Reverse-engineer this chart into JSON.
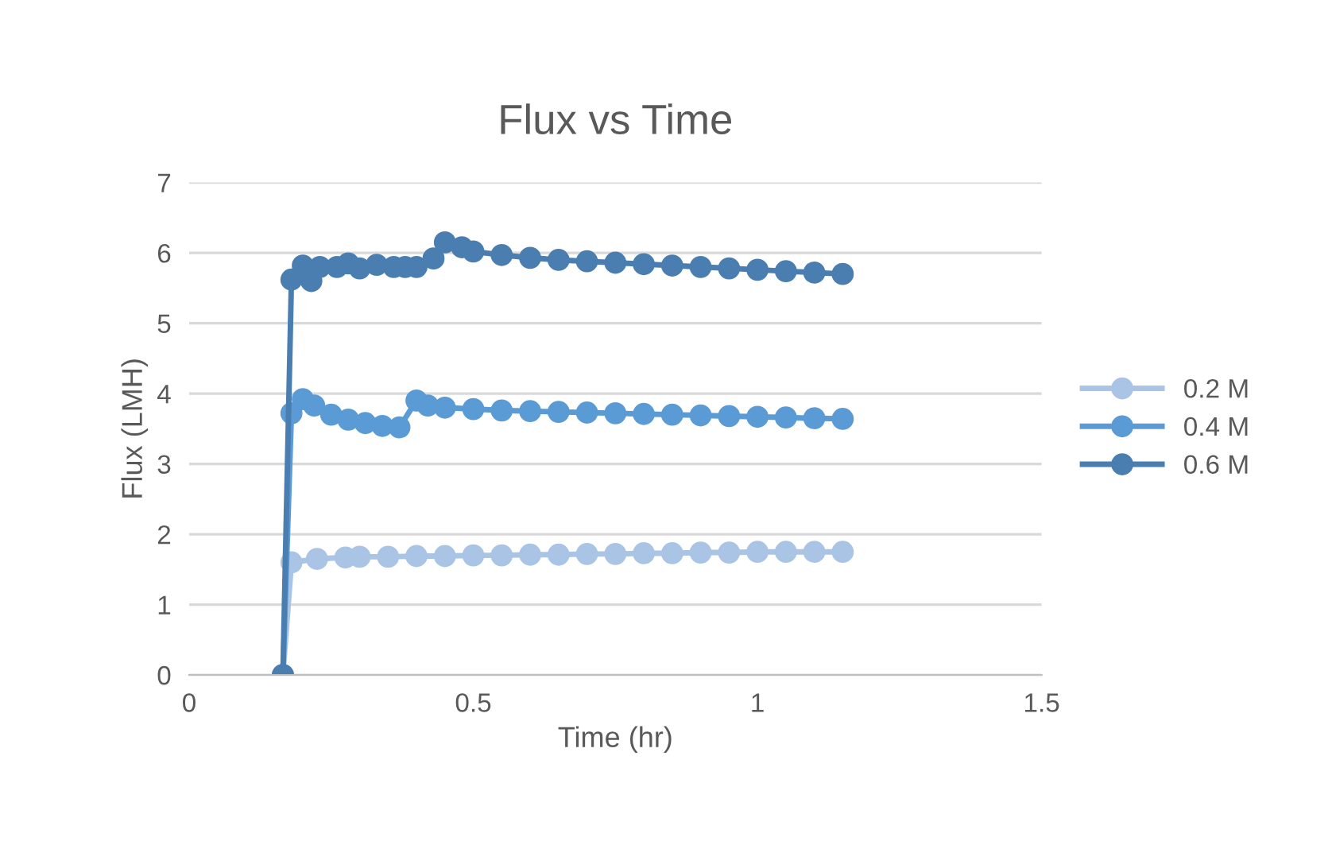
{
  "chart_data": {
    "type": "line",
    "title": "Flux vs Time",
    "xlabel": "Time (hr)",
    "ylabel": "Flux (LMH)",
    "xlim": [
      0,
      1.5
    ],
    "xticks": [
      0,
      0.5,
      1,
      1.5
    ],
    "ylim": [
      0,
      7
    ],
    "yticks": [
      0,
      1,
      2,
      3,
      4,
      5,
      6,
      7
    ],
    "grid": "y",
    "legend": "right",
    "marker": "circle",
    "line_style": "solid",
    "series": [
      {
        "name": "0.2 M",
        "color": "#a9c4e4",
        "x": [
          0.165,
          0.18,
          0.225,
          0.275,
          0.3,
          0.35,
          0.4,
          0.45,
          0.5,
          0.55,
          0.6,
          0.65,
          0.7,
          0.75,
          0.8,
          0.85,
          0.9,
          0.95,
          1.0,
          1.05,
          1.1,
          1.15
        ],
        "values": [
          0,
          1.6,
          1.65,
          1.67,
          1.68,
          1.68,
          1.69,
          1.69,
          1.7,
          1.7,
          1.71,
          1.71,
          1.72,
          1.72,
          1.73,
          1.73,
          1.74,
          1.74,
          1.75,
          1.75,
          1.75,
          1.75
        ]
      },
      {
        "name": "0.4 M",
        "color": "#5b9bd5",
        "x": [
          0.165,
          0.18,
          0.2,
          0.22,
          0.25,
          0.28,
          0.31,
          0.34,
          0.37,
          0.4,
          0.42,
          0.45,
          0.5,
          0.55,
          0.6,
          0.65,
          0.7,
          0.75,
          0.8,
          0.85,
          0.9,
          0.95,
          1.0,
          1.05,
          1.1,
          1.15
        ],
        "values": [
          0,
          3.72,
          3.92,
          3.83,
          3.7,
          3.63,
          3.58,
          3.54,
          3.52,
          3.9,
          3.83,
          3.8,
          3.78,
          3.76,
          3.75,
          3.74,
          3.73,
          3.72,
          3.71,
          3.7,
          3.69,
          3.68,
          3.67,
          3.66,
          3.65,
          3.64
        ]
      },
      {
        "name": "0.6 M",
        "color": "#4a7eb0",
        "x": [
          0.165,
          0.18,
          0.2,
          0.215,
          0.23,
          0.26,
          0.28,
          0.3,
          0.33,
          0.36,
          0.38,
          0.4,
          0.43,
          0.45,
          0.48,
          0.5,
          0.55,
          0.6,
          0.65,
          0.7,
          0.75,
          0.8,
          0.85,
          0.9,
          0.95,
          1.0,
          1.05,
          1.1,
          1.15
        ],
        "values": [
          0,
          5.62,
          5.82,
          5.6,
          5.8,
          5.8,
          5.85,
          5.78,
          5.83,
          5.8,
          5.8,
          5.8,
          5.92,
          6.15,
          6.08,
          6.02,
          5.97,
          5.93,
          5.9,
          5.88,
          5.86,
          5.84,
          5.82,
          5.8,
          5.78,
          5.76,
          5.74,
          5.72,
          5.7
        ]
      }
    ]
  }
}
